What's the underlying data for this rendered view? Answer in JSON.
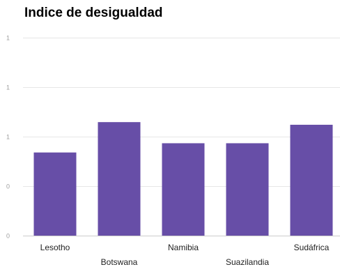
{
  "chart_data": {
    "type": "bar",
    "title": "Indice de desigualdad",
    "xlabel": "",
    "ylabel": "",
    "categories": [
      "Lesotho",
      "Botswana",
      "Namibia",
      "Suazilandia",
      "Sudáfrica"
    ],
    "values": [
      0.63,
      0.86,
      0.7,
      0.7,
      0.84
    ],
    "ylim": [
      0,
      1.5
    ],
    "y_ticks": [
      0,
      0.375,
      0.75,
      1.125,
      1.5
    ],
    "y_tick_labels": [
      "0",
      "0",
      "1",
      "1",
      "1"
    ],
    "grid": true,
    "legend": "none",
    "bar_color": "#674ea7"
  }
}
